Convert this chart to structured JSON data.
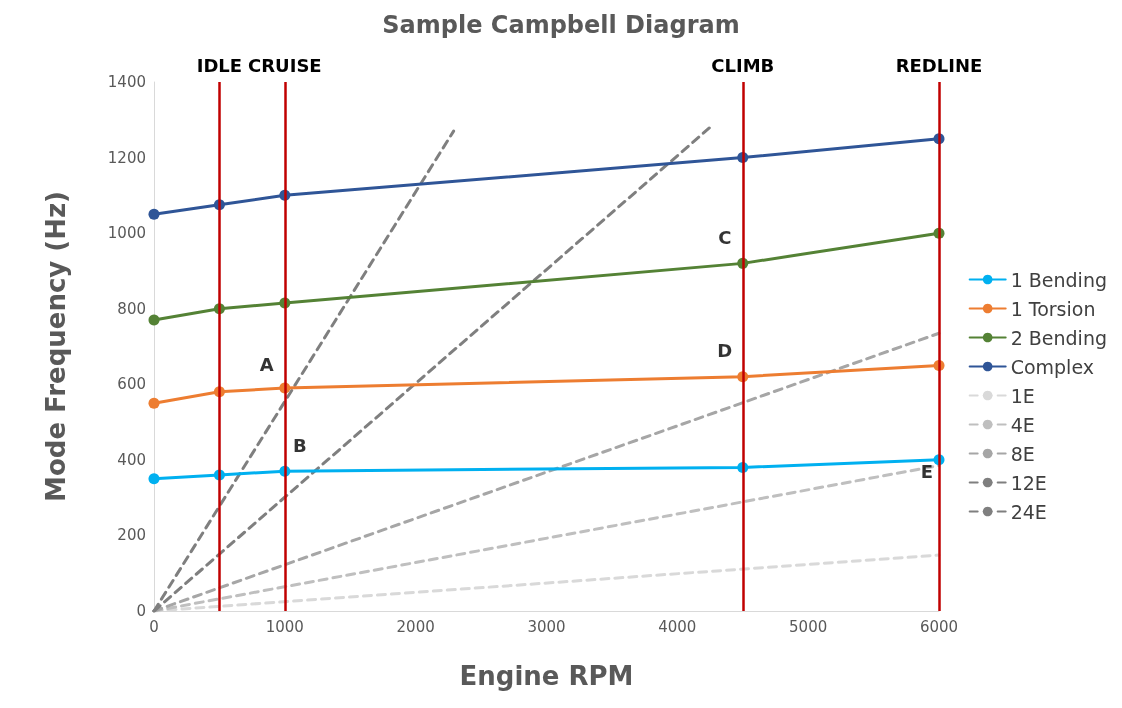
{
  "chart_data": {
    "type": "line",
    "title": "Sample Campbell Diagram",
    "xlabel": "Engine RPM",
    "ylabel": "Mode Frequency (Hz)",
    "x": [
      0,
      500,
      1000,
      4500,
      6000
    ],
    "series": [
      {
        "name": "1 Bending",
        "color": "#00b0f0",
        "values": [
          350,
          360,
          370,
          380,
          400
        ]
      },
      {
        "name": "1 Torsion",
        "color": "#ed7d31",
        "values": [
          550,
          580,
          590,
          620,
          650
        ]
      },
      {
        "name": "2 Bending",
        "color": "#548235",
        "values": [
          770,
          800,
          815,
          920,
          1000
        ]
      },
      {
        "name": "Complex",
        "color": "#2f5597",
        "values": [
          1050,
          1075,
          1100,
          1200,
          1250
        ]
      },
      {
        "name": "1E",
        "color": "#d9d9d9",
        "x": [
          0,
          6000
        ],
        "values": [
          0,
          148
        ],
        "line_style": "dashed",
        "marker": "none"
      },
      {
        "name": "4E",
        "color": "#bfbfbf",
        "x": [
          0,
          6000
        ],
        "values": [
          0,
          385
        ],
        "line_style": "dashed",
        "marker": "none"
      },
      {
        "name": "8E",
        "color": "#a6a6a6",
        "x": [
          0,
          6000
        ],
        "values": [
          0,
          735
        ],
        "line_style": "dashed",
        "marker": "none"
      },
      {
        "name": "12E",
        "color": "#7f7f7f",
        "x": [
          0,
          4250
        ],
        "values": [
          0,
          1280
        ],
        "line_style": "dashed",
        "marker": "none"
      },
      {
        "name": "24E",
        "color": "#7f7f7f",
        "x": [
          0,
          2290
        ],
        "values": [
          0,
          1270
        ],
        "line_style": "dashed",
        "marker": "none"
      }
    ],
    "xlim": [
      0,
      6000
    ],
    "xticks": [
      0,
      1000,
      2000,
      3000,
      4000,
      5000,
      6000
    ],
    "ylim": [
      0,
      1400
    ],
    "yticks": [
      0,
      200,
      400,
      600,
      800,
      1000,
      1200,
      1400
    ],
    "ref_lines": [
      {
        "axis": "x",
        "value": 500,
        "label": "IDLE",
        "color": "#c00000"
      },
      {
        "axis": "x",
        "value": 1000,
        "label": "CRUISE",
        "color": "#c00000"
      },
      {
        "axis": "x",
        "value": 4500,
        "label": "CLIMB",
        "color": "#c00000"
      },
      {
        "axis": "x",
        "value": 6000,
        "label": "REDLINE",
        "color": "#c00000"
      }
    ],
    "annotations": [
      {
        "text": "A",
        "x": 1000,
        "y": 590
      },
      {
        "text": "B",
        "x": 1000,
        "y": 370
      },
      {
        "text": "C",
        "x": 4500,
        "y": 920
      },
      {
        "text": "D",
        "x": 4500,
        "y": 620
      },
      {
        "text": "E",
        "x": 6000,
        "y": 400
      }
    ],
    "marker": "circle",
    "line_style": "solid",
    "grid": false,
    "legend": "right"
  }
}
